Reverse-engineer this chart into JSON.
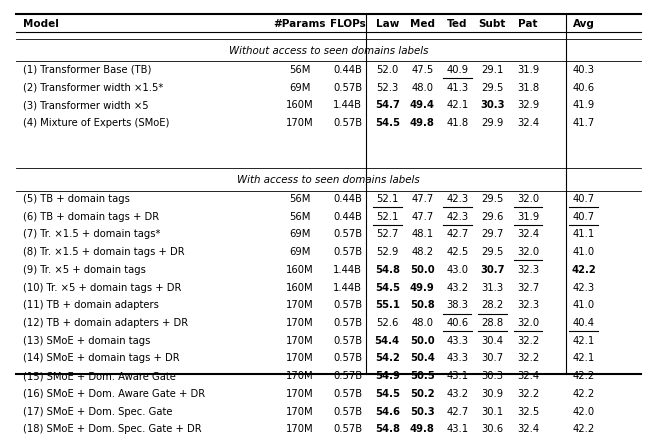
{
  "columns": [
    "Model",
    "#Params",
    "FLOPs",
    "Law",
    "Med",
    "Ted",
    "Subt",
    "Pat",
    "Avg"
  ],
  "section1_header": "Without access to seen domains labels",
  "section2_header": "With access to seen domains labels",
  "rows_section1": [
    [
      "(1) Transformer Base (TB)",
      "56M",
      "0.44B",
      "52.0",
      "47.5",
      "40.9",
      "29.1",
      "31.9",
      "40.3"
    ],
    [
      "(2) Transformer width ×1.5*",
      "69M",
      "0.57B",
      "52.3",
      "48.0",
      "41.3",
      "29.5",
      "31.8",
      "40.6"
    ],
    [
      "(3) Transformer width ×5",
      "160M",
      "1.44B",
      "54.7",
      "49.4",
      "42.1",
      "30.3",
      "32.9",
      "41.9"
    ],
    [
      "(4) Mixture of Experts (SMoE)",
      "170M",
      "0.57B",
      "54.5",
      "49.8",
      "41.8",
      "29.9",
      "32.4",
      "41.7"
    ]
  ],
  "rows_section2": [
    [
      "(5) TB + domain tags",
      "56M",
      "0.44B",
      "52.1",
      "47.7",
      "42.3",
      "29.5",
      "32.0",
      "40.7"
    ],
    [
      "(6) TB + domain tags + DR",
      "56M",
      "0.44B",
      "52.1",
      "47.7",
      "42.3",
      "29.6",
      "31.9",
      "40.7"
    ],
    [
      "(7) Tr. ×1.5 + domain tags*",
      "69M",
      "0.57B",
      "52.7",
      "48.1",
      "42.7",
      "29.7",
      "32.4",
      "41.1"
    ],
    [
      "(8) Tr. ×1.5 + domain tags + DR",
      "69M",
      "0.57B",
      "52.9",
      "48.2",
      "42.5",
      "29.5",
      "32.0",
      "41.0"
    ],
    [
      "(9) Tr. ×5 + domain tags",
      "160M",
      "1.44B",
      "54.8",
      "50.0",
      "43.0",
      "30.7",
      "32.3",
      "42.2"
    ],
    [
      "(10) Tr. ×5 + domain tags + DR",
      "160M",
      "1.44B",
      "54.5",
      "49.9",
      "43.2",
      "31.3",
      "32.7",
      "42.3"
    ],
    [
      "(11) TB + domain adapters",
      "170M",
      "0.57B",
      "55.1",
      "50.8",
      "38.3",
      "28.2",
      "32.3",
      "41.0"
    ],
    [
      "(12) TB + domain adapters + DR",
      "170M",
      "0.57B",
      "52.6",
      "48.0",
      "40.6",
      "28.8",
      "32.0",
      "40.4"
    ],
    [
      "(13) SMoE + domain tags",
      "170M",
      "0.57B",
      "54.4",
      "50.0",
      "43.3",
      "30.4",
      "32.2",
      "42.1"
    ],
    [
      "(14) SMoE + domain tags + DR",
      "170M",
      "0.57B",
      "54.2",
      "50.4",
      "43.3",
      "30.7",
      "32.2",
      "42.1"
    ],
    [
      "(15) SMoE + Dom. Aware Gate",
      "170M",
      "0.57B",
      "54.9",
      "50.5",
      "43.1",
      "30.3",
      "32.4",
      "42.2"
    ],
    [
      "(16) SMoE + Dom. Aware Gate + DR",
      "170M",
      "0.57B",
      "54.5",
      "50.2",
      "43.2",
      "30.9",
      "32.2",
      "42.2"
    ],
    [
      "(17) SMoE + Dom. Spec. Gate",
      "170M",
      "0.57B",
      "54.6",
      "50.3",
      "42.7",
      "30.1",
      "32.5",
      "42.0"
    ],
    [
      "(18) SMoE + Dom. Spec. Gate + DR",
      "170M",
      "0.57B",
      "54.8",
      "49.8",
      "43.1",
      "30.6",
      "32.4",
      "42.2"
    ]
  ],
  "bold_section1": [
    [
      false,
      false,
      false,
      false,
      false,
      false,
      false,
      false,
      false
    ],
    [
      false,
      false,
      false,
      false,
      false,
      false,
      false,
      false,
      false
    ],
    [
      false,
      false,
      false,
      true,
      true,
      false,
      true,
      false,
      false
    ],
    [
      false,
      false,
      false,
      true,
      true,
      false,
      false,
      false,
      false
    ]
  ],
  "bold_section2": [
    [
      false,
      false,
      false,
      false,
      false,
      false,
      false,
      false,
      false
    ],
    [
      false,
      false,
      false,
      false,
      false,
      false,
      false,
      false,
      false
    ],
    [
      false,
      false,
      false,
      false,
      false,
      false,
      false,
      false,
      false
    ],
    [
      false,
      false,
      false,
      false,
      false,
      false,
      false,
      false,
      false
    ],
    [
      false,
      false,
      false,
      true,
      true,
      false,
      true,
      false,
      true
    ],
    [
      false,
      false,
      false,
      true,
      true,
      false,
      false,
      false,
      false
    ],
    [
      false,
      false,
      false,
      true,
      true,
      false,
      false,
      false,
      false
    ],
    [
      false,
      false,
      false,
      false,
      false,
      false,
      false,
      false,
      false
    ],
    [
      false,
      false,
      false,
      true,
      true,
      false,
      false,
      false,
      false
    ],
    [
      false,
      false,
      false,
      true,
      true,
      false,
      false,
      false,
      false
    ],
    [
      false,
      false,
      false,
      true,
      true,
      false,
      false,
      false,
      false
    ],
    [
      false,
      false,
      false,
      true,
      true,
      false,
      false,
      false,
      false
    ],
    [
      false,
      false,
      false,
      true,
      true,
      false,
      false,
      false,
      false
    ],
    [
      false,
      false,
      false,
      true,
      true,
      false,
      false,
      false,
      false
    ]
  ],
  "underline_section1": [
    [
      false,
      false,
      false,
      false,
      false,
      true,
      false,
      false,
      false
    ],
    [
      false,
      false,
      false,
      false,
      false,
      false,
      false,
      false,
      false
    ],
    [
      false,
      false,
      false,
      false,
      false,
      false,
      false,
      false,
      false
    ],
    [
      false,
      false,
      false,
      false,
      false,
      false,
      false,
      false,
      false
    ]
  ],
  "underline_section2": [
    [
      false,
      false,
      false,
      true,
      false,
      true,
      false,
      true,
      true
    ],
    [
      false,
      false,
      false,
      true,
      false,
      true,
      false,
      true,
      true
    ],
    [
      false,
      false,
      false,
      false,
      false,
      false,
      false,
      false,
      false
    ],
    [
      false,
      false,
      false,
      false,
      false,
      false,
      false,
      true,
      false
    ],
    [
      false,
      false,
      false,
      false,
      false,
      false,
      false,
      false,
      false
    ],
    [
      false,
      false,
      false,
      false,
      false,
      false,
      false,
      false,
      false
    ],
    [
      false,
      false,
      false,
      false,
      false,
      true,
      true,
      false,
      false
    ],
    [
      false,
      false,
      false,
      false,
      false,
      true,
      true,
      true,
      true
    ],
    [
      false,
      false,
      false,
      false,
      false,
      false,
      false,
      false,
      false
    ],
    [
      false,
      false,
      false,
      false,
      false,
      false,
      false,
      false,
      false
    ],
    [
      false,
      false,
      false,
      false,
      false,
      false,
      false,
      false,
      false
    ],
    [
      false,
      false,
      false,
      false,
      false,
      false,
      false,
      false,
      false
    ],
    [
      false,
      false,
      false,
      false,
      false,
      false,
      false,
      false,
      false
    ],
    [
      false,
      false,
      false,
      false,
      false,
      false,
      false,
      false,
      false
    ]
  ]
}
